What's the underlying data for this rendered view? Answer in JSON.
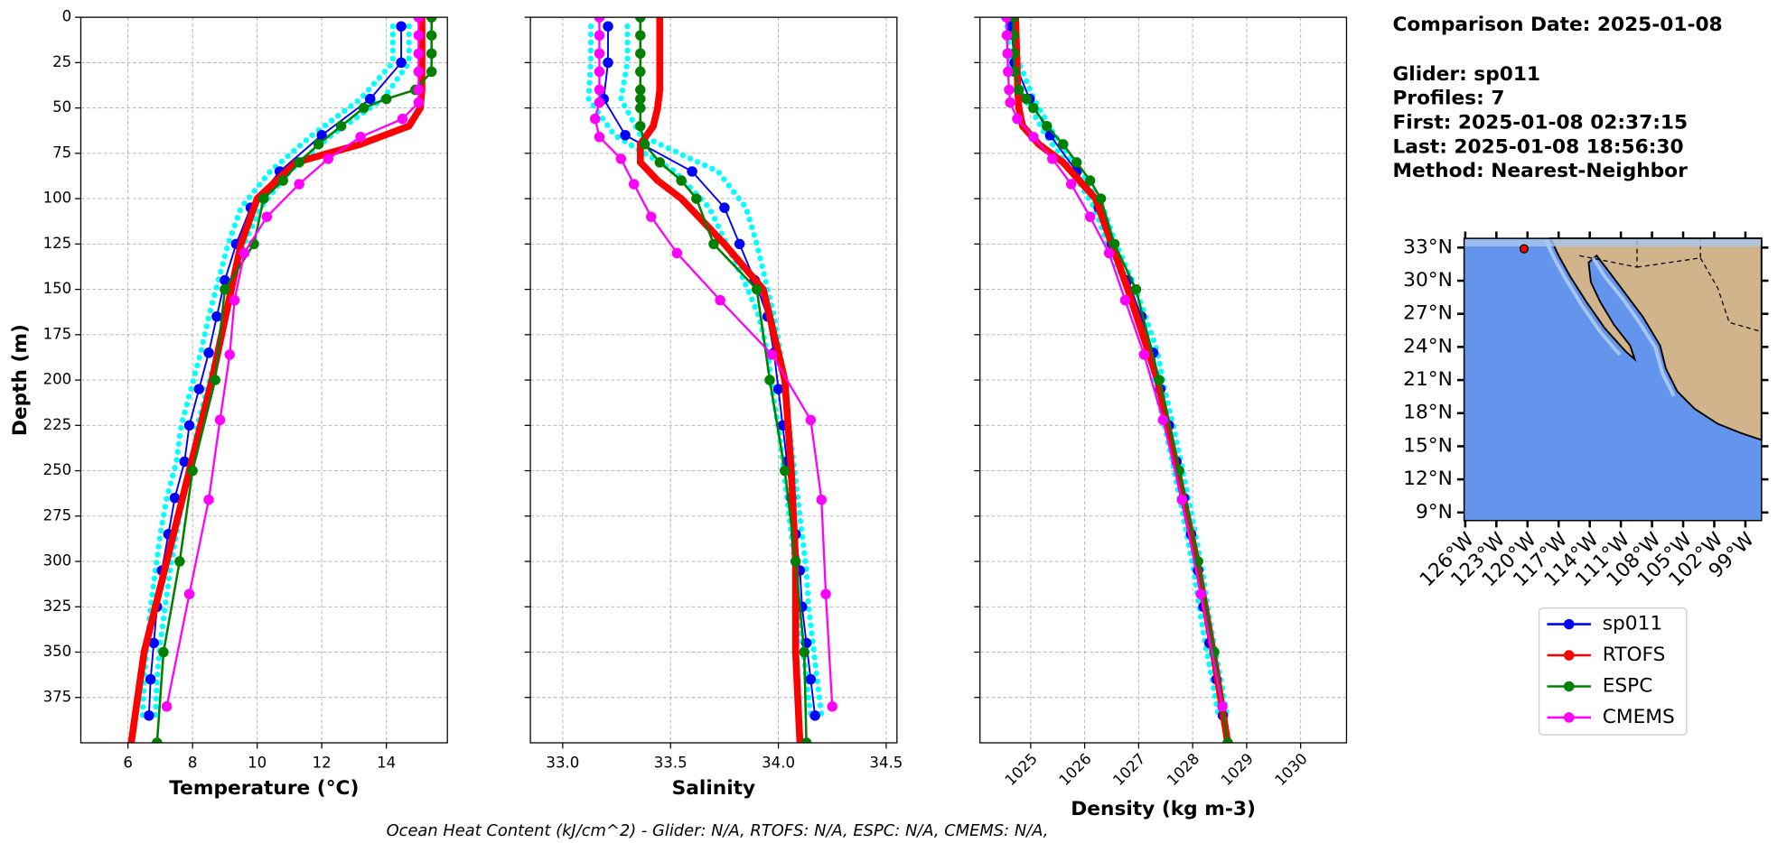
{
  "chart_data": [
    {
      "type": "line",
      "x_label": "Temperature (°C)",
      "y_label": "Depth (m)",
      "grid": true,
      "xlim": [
        4.54,
        15.89
      ],
      "xticks": [
        6,
        8,
        10,
        12,
        14
      ],
      "ylim": [
        0,
        400
      ],
      "y_inverted": true,
      "yticks": [
        0,
        25,
        50,
        75,
        100,
        125,
        150,
        175,
        200,
        225,
        250,
        275,
        300,
        325,
        350,
        375
      ],
      "ytick_labels": true,
      "profiles": {
        "color": "#00ffff",
        "y": [
          5,
          25,
          45,
          65,
          85,
          105,
          125,
          145,
          165,
          185,
          205,
          225,
          245,
          265,
          285,
          305,
          325,
          345,
          365,
          385
        ],
        "values": [
          [
            14.2,
            14.2,
            13.2,
            11.7,
            10.4,
            9.5,
            9.1,
            8.8,
            8.5,
            8.25,
            7.95,
            7.65,
            7.5,
            7.2,
            7.0,
            6.85,
            6.7,
            6.6,
            6.5,
            6.45
          ],
          [
            14.7,
            14.7,
            13.9,
            12.3,
            11.0,
            10.1,
            9.6,
            9.25,
            9.0,
            8.75,
            8.45,
            8.15,
            8.0,
            7.7,
            7.5,
            7.3,
            7.15,
            7.0,
            6.9,
            6.85
          ]
        ]
      },
      "series": [
        {
          "name": "sp011",
          "color": "#0000ff",
          "y": [
            5,
            25,
            45,
            65,
            85,
            105,
            125,
            145,
            165,
            185,
            205,
            225,
            245,
            265,
            285,
            305,
            325,
            345,
            365,
            385
          ],
          "values": [
            14.46,
            14.46,
            13.5,
            12.0,
            10.7,
            9.8,
            9.35,
            9.0,
            8.75,
            8.5,
            8.2,
            7.9,
            7.75,
            7.45,
            7.25,
            7.05,
            6.9,
            6.8,
            6.7,
            6.65
          ]
        },
        {
          "name": "RTOFS",
          "color": "#ff0000",
          "y": [
            0,
            10,
            20,
            30,
            40,
            50,
            60,
            70,
            80,
            90,
            100,
            125,
            150,
            200,
            250,
            300,
            350,
            400
          ],
          "values": [
            15.1,
            15.1,
            15.1,
            15.1,
            15.1,
            15.05,
            14.7,
            13.2,
            11.2,
            10.6,
            10.0,
            9.5,
            9.2,
            8.6,
            7.9,
            7.2,
            6.5,
            6.1
          ]
        },
        {
          "name": "ESPC",
          "color": "#008000",
          "y": [
            0,
            10,
            20,
            30,
            40,
            45,
            50,
            60,
            70,
            80,
            90,
            100,
            125,
            150,
            200,
            250,
            300,
            350,
            400
          ],
          "values": [
            15.4,
            15.4,
            15.4,
            15.4,
            14.9,
            14.0,
            13.3,
            12.6,
            11.9,
            11.3,
            10.8,
            10.2,
            9.9,
            9.0,
            8.7,
            8.0,
            7.6,
            7.1,
            6.9
          ]
        },
        {
          "name": "CMEMS",
          "color": "#ff00ff",
          "y": [
            0,
            10,
            20,
            30,
            40,
            47,
            56,
            66,
            78,
            92,
            110,
            130,
            156,
            186,
            222,
            266,
            318,
            380
          ],
          "values": [
            15.0,
            15.0,
            15.0,
            15.0,
            15.0,
            15.0,
            14.5,
            13.2,
            12.2,
            11.3,
            10.3,
            9.6,
            9.3,
            9.15,
            8.85,
            8.5,
            7.9,
            7.2
          ]
        }
      ]
    },
    {
      "type": "line",
      "x_label": "Salinity",
      "grid": true,
      "xlim": [
        32.85,
        34.55
      ],
      "xticks": [
        {
          "value": 33,
          "label": "33.0"
        },
        33.5,
        {
          "value": 34,
          "label": "34.0"
        },
        34.5
      ],
      "ylim": [
        0,
        400
      ],
      "y_inverted": true,
      "yticks": [
        0,
        25,
        50,
        75,
        100,
        125,
        150,
        175,
        200,
        225,
        250,
        275,
        300,
        325,
        350,
        375
      ],
      "ytick_labels": false,
      "profiles": {
        "color": "#00ffff",
        "y": [
          5,
          25,
          45,
          65,
          85,
          105,
          125,
          145,
          165,
          185,
          205,
          225,
          245,
          265,
          285,
          305,
          325,
          345,
          365,
          385
        ],
        "values": [
          [
            33.13,
            33.13,
            33.12,
            33.24,
            33.52,
            33.68,
            33.76,
            33.84,
            33.91,
            33.95,
            33.97,
            34.0,
            34.02,
            34.04,
            34.06,
            34.08,
            34.09,
            34.11,
            34.13,
            34.15
          ],
          [
            33.3,
            33.3,
            33.27,
            33.36,
            33.72,
            33.85,
            33.9,
            33.94,
            33.98,
            34.01,
            34.03,
            34.05,
            34.07,
            34.09,
            34.11,
            34.13,
            34.14,
            34.16,
            34.18,
            34.2
          ]
        ]
      },
      "series": [
        {
          "color": "#0000ff",
          "y": [
            5,
            25,
            45,
            65,
            85,
            105,
            125,
            145,
            165,
            185,
            205,
            225,
            245,
            265,
            285,
            305,
            325,
            345,
            365,
            385
          ],
          "values": [
            33.21,
            33.21,
            33.19,
            33.29,
            33.6,
            33.75,
            33.82,
            33.89,
            33.95,
            33.98,
            34.0,
            34.02,
            34.04,
            34.06,
            34.08,
            34.1,
            34.11,
            34.13,
            34.15,
            34.17
          ]
        },
        {
          "color": "#ff0000",
          "y": [
            0,
            10,
            20,
            30,
            40,
            50,
            60,
            70,
            80,
            90,
            100,
            125,
            150,
            200,
            250,
            300,
            350,
            400
          ],
          "values": [
            33.45,
            33.45,
            33.45,
            33.45,
            33.45,
            33.44,
            33.42,
            33.36,
            33.36,
            33.44,
            33.55,
            33.75,
            33.93,
            34.03,
            34.06,
            34.08,
            34.08,
            34.1
          ]
        },
        {
          "color": "#008000",
          "y": [
            0,
            10,
            20,
            30,
            40,
            45,
            50,
            60,
            70,
            80,
            90,
            100,
            125,
            150,
            200,
            250,
            300,
            350,
            400
          ],
          "values": [
            33.36,
            33.36,
            33.36,
            33.36,
            33.36,
            33.36,
            33.36,
            33.36,
            33.38,
            33.45,
            33.55,
            33.62,
            33.7,
            33.9,
            33.96,
            34.03,
            34.08,
            34.12,
            34.13
          ]
        },
        {
          "color": "#ff00ff",
          "y": [
            0,
            10,
            20,
            30,
            40,
            47,
            56,
            66,
            78,
            92,
            110,
            130,
            156,
            186,
            222,
            266,
            318,
            380
          ],
          "values": [
            33.17,
            33.17,
            33.17,
            33.17,
            33.17,
            33.17,
            33.15,
            33.17,
            33.27,
            33.33,
            33.41,
            33.53,
            33.73,
            33.97,
            34.15,
            34.2,
            34.22,
            34.25
          ]
        }
      ]
    },
    {
      "type": "line",
      "x_label": "Density (kg m-3)",
      "grid": true,
      "xlim": [
        1024.06,
        1030.85
      ],
      "xticks": [
        1025,
        1026,
        1027,
        1028,
        1029,
        1030
      ],
      "xtick_rotation": 45,
      "ylim": [
        0,
        400
      ],
      "y_inverted": true,
      "yticks": [
        0,
        25,
        50,
        75,
        100,
        125,
        150,
        175,
        200,
        225,
        250,
        275,
        300,
        325,
        350,
        375
      ],
      "ytick_labels": false,
      "profiles": {
        "color": "#00ffff",
        "y": [
          5,
          25,
          45,
          65,
          85,
          105,
          125,
          145,
          165,
          185,
          205,
          225,
          245,
          265,
          285,
          305,
          325,
          345,
          365,
          385
        ],
        "values": [
          [
            1024.56,
            1024.62,
            1024.9,
            1025.28,
            1025.77,
            1026.18,
            1026.42,
            1026.72,
            1026.97,
            1027.19,
            1027.32,
            1027.48,
            1027.62,
            1027.76,
            1027.89,
            1028.02,
            1028.12,
            1028.23,
            1028.36,
            1028.48
          ],
          [
            1024.72,
            1024.78,
            1025.06,
            1025.44,
            1025.93,
            1026.34,
            1026.58,
            1026.88,
            1027.13,
            1027.35,
            1027.48,
            1027.64,
            1027.78,
            1027.92,
            1028.05,
            1028.18,
            1028.28,
            1028.39,
            1028.52,
            1028.64
          ]
        ]
      },
      "series": [
        {
          "color": "#0000ff",
          "y": [
            5,
            25,
            45,
            65,
            85,
            105,
            125,
            145,
            165,
            185,
            205,
            225,
            245,
            265,
            285,
            305,
            325,
            345,
            365,
            385
          ],
          "values": [
            1024.64,
            1024.7,
            1024.98,
            1025.36,
            1025.85,
            1026.26,
            1026.5,
            1026.8,
            1027.05,
            1027.27,
            1027.4,
            1027.56,
            1027.7,
            1027.84,
            1027.97,
            1028.1,
            1028.2,
            1028.31,
            1028.44,
            1028.56
          ]
        },
        {
          "color": "#ff0000",
          "y": [
            0,
            10,
            20,
            30,
            40,
            50,
            60,
            70,
            80,
            90,
            100,
            125,
            150,
            200,
            250,
            300,
            350,
            400
          ],
          "values": [
            1024.72,
            1024.73,
            1024.74,
            1024.75,
            1024.76,
            1024.78,
            1024.85,
            1025.15,
            1025.6,
            1025.9,
            1026.2,
            1026.5,
            1026.8,
            1027.35,
            1027.72,
            1028.08,
            1028.38,
            1028.65
          ]
        },
        {
          "color": "#008000",
          "y": [
            0,
            10,
            20,
            30,
            40,
            45,
            50,
            60,
            70,
            80,
            90,
            100,
            125,
            150,
            200,
            250,
            300,
            350,
            400
          ],
          "values": [
            1024.68,
            1024.68,
            1024.69,
            1024.7,
            1024.78,
            1024.92,
            1025.05,
            1025.3,
            1025.6,
            1025.85,
            1026.1,
            1026.3,
            1026.55,
            1026.95,
            1027.38,
            1027.75,
            1028.1,
            1028.4,
            1028.65
          ]
        },
        {
          "color": "#ff00ff",
          "y": [
            0,
            10,
            20,
            30,
            40,
            47,
            56,
            66,
            78,
            92,
            110,
            130,
            156,
            186,
            222,
            266,
            318,
            380
          ],
          "values": [
            1024.55,
            1024.56,
            1024.57,
            1024.58,
            1024.6,
            1024.62,
            1024.75,
            1025.05,
            1025.4,
            1025.75,
            1026.1,
            1026.45,
            1026.75,
            1027.1,
            1027.45,
            1027.8,
            1028.15,
            1028.55
          ]
        }
      ]
    }
  ],
  "info": {
    "date": "Comparison Date: 2025-01-08",
    "lines": [
      "Glider: sp011",
      "Profiles: 7",
      "First: 2025-01-08 02:37:15",
      "Last: 2025-01-08 18:56:30",
      "Method: Nearest-Neighbor"
    ]
  },
  "map": {
    "lat_labels": [
      "33°N",
      "30°N",
      "27°N",
      "24°N",
      "21°N",
      "18°N",
      "15°N",
      "12°N",
      "9°N"
    ],
    "lon_labels": [
      "126°W",
      "123°W",
      "120°W",
      "117°W",
      "114°W",
      "111°W",
      "108°W",
      "105°W",
      "102°W",
      "99°W"
    ]
  },
  "footer": "Ocean Heat Content (kJ/cm^2) - Glider: N/A,  RTOFS: N/A,  ESPC: N/A,  CMEMS: N/A,"
}
